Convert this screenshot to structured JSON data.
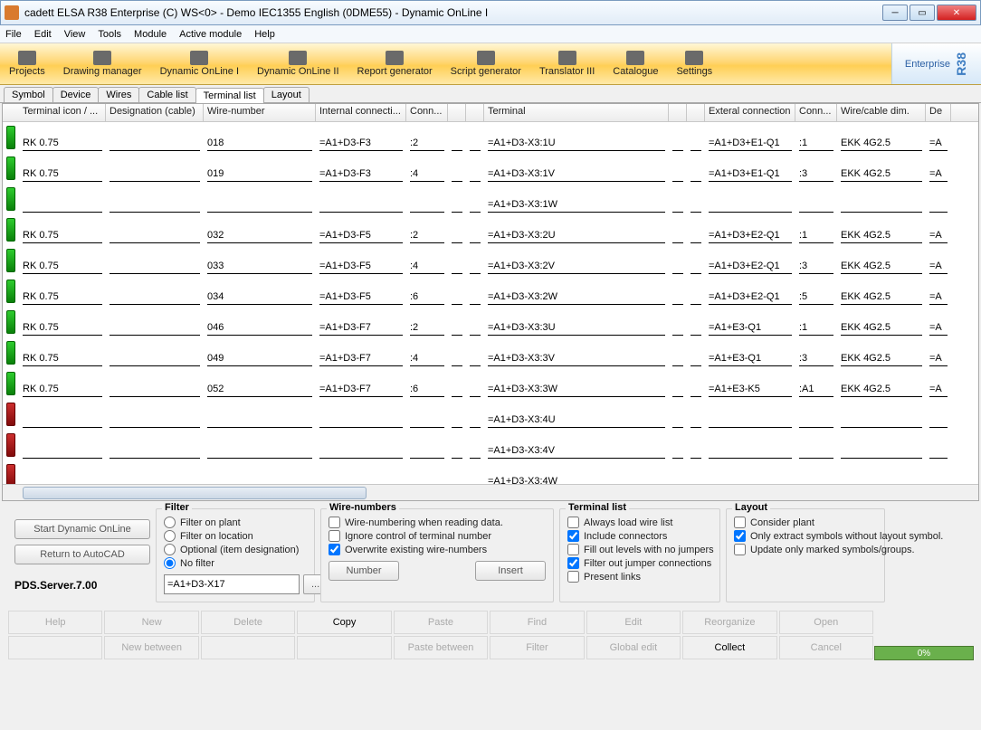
{
  "window": {
    "title": "cadett ELSA R38 Enterprise (C) WS<0>  - Demo IEC1355 English (0DME55) - Dynamic OnLine I"
  },
  "menu": [
    "File",
    "Edit",
    "View",
    "Tools",
    "Module",
    "Active module",
    "Help"
  ],
  "ribbon": {
    "items": [
      "Projects",
      "Drawing manager",
      "Dynamic OnLine I",
      "Dynamic OnLine II",
      "Report generator",
      "Script generator",
      "Translator III",
      "Catalogue",
      "Settings"
    ],
    "brand": "Enterprise",
    "brand_suffix": "R38"
  },
  "tabs": [
    "Symbol",
    "Device",
    "Wires",
    "Cable list",
    "Terminal list",
    "Layout"
  ],
  "active_tab_index": 4,
  "columns": [
    "Terminal icon / ...",
    "Designation (cable)",
    "Wire-number",
    "Internal connecti...",
    "Conn...",
    "",
    "",
    "Terminal",
    "",
    "",
    "Exteral connection",
    "Conn...",
    "Wire/cable dim.",
    "De..."
  ],
  "rows": [
    {
      "color": "green",
      "ric": "RK 0.75",
      "desig": "",
      "wire": "018",
      "intc": "=A1+D3-F3",
      "conn1": ":2",
      "term": "=A1+D3-X3:1U",
      "ext": "=A1+D3+E1-Q1",
      "conn2": ":1",
      "wdim": "EKK 4G2.5",
      "last": "=A"
    },
    {
      "color": "green",
      "ric": "RK 0.75",
      "desig": "",
      "wire": "019",
      "intc": "=A1+D3-F3",
      "conn1": ":4",
      "term": "=A1+D3-X3:1V",
      "ext": "=A1+D3+E1-Q1",
      "conn2": ":3",
      "wdim": "EKK 4G2.5",
      "last": "=A"
    },
    {
      "color": "green",
      "ric": "",
      "desig": "",
      "wire": "",
      "intc": "",
      "conn1": "",
      "term": "=A1+D3-X3:1W",
      "ext": "",
      "conn2": "",
      "wdim": "",
      "last": ""
    },
    {
      "color": "green",
      "ric": "RK 0.75",
      "desig": "",
      "wire": "032",
      "intc": "=A1+D3-F5",
      "conn1": ":2",
      "term": "=A1+D3-X3:2U",
      "ext": "=A1+D3+E2-Q1",
      "conn2": ":1",
      "wdim": "EKK 4G2.5",
      "last": "=A"
    },
    {
      "color": "green",
      "ric": "RK 0.75",
      "desig": "",
      "wire": "033",
      "intc": "=A1+D3-F5",
      "conn1": ":4",
      "term": "=A1+D3-X3:2V",
      "ext": "=A1+D3+E2-Q1",
      "conn2": ":3",
      "wdim": "EKK 4G2.5",
      "last": "=A"
    },
    {
      "color": "green",
      "ric": "RK 0.75",
      "desig": "",
      "wire": "034",
      "intc": "=A1+D3-F5",
      "conn1": ":6",
      "term": "=A1+D3-X3:2W",
      "ext": "=A1+D3+E2-Q1",
      "conn2": ":5",
      "wdim": "EKK 4G2.5",
      "last": "=A"
    },
    {
      "color": "green",
      "ric": "RK 0.75",
      "desig": "",
      "wire": "046",
      "intc": "=A1+D3-F7",
      "conn1": ":2",
      "term": "=A1+D3-X3:3U",
      "ext": "=A1+E3-Q1",
      "conn2": ":1",
      "wdim": "EKK 4G2.5",
      "last": "=A"
    },
    {
      "color": "green",
      "ric": "RK 0.75",
      "desig": "",
      "wire": "049",
      "intc": "=A1+D3-F7",
      "conn1": ":4",
      "term": "=A1+D3-X3:3V",
      "ext": "=A1+E3-Q1",
      "conn2": ":3",
      "wdim": "EKK 4G2.5",
      "last": "=A"
    },
    {
      "color": "green",
      "ric": "RK 0.75",
      "desig": "",
      "wire": "052",
      "intc": "=A1+D3-F7",
      "conn1": ":6",
      "term": "=A1+D3-X3:3W",
      "ext": "=A1+E3-K5",
      "conn2": ":A1",
      "wdim": "EKK 4G2.5",
      "last": "=A"
    },
    {
      "color": "red",
      "ric": "",
      "desig": "",
      "wire": "",
      "intc": "",
      "conn1": "",
      "term": "=A1+D3-X3:4U",
      "ext": "",
      "conn2": "",
      "wdim": "",
      "last": ""
    },
    {
      "color": "red",
      "ric": "",
      "desig": "",
      "wire": "",
      "intc": "",
      "conn1": "",
      "term": "=A1+D3-X3:4V",
      "ext": "",
      "conn2": "",
      "wdim": "",
      "last": ""
    },
    {
      "color": "red",
      "ric": "",
      "desig": "",
      "wire": "",
      "intc": "",
      "conn1": "",
      "term": "=A1+D3-X3:4W",
      "ext": "",
      "conn2": "",
      "wdim": "",
      "last": ""
    }
  ],
  "left_buttons": {
    "start": "Start Dynamic OnLine",
    "return": "Return to AutoCAD"
  },
  "pds": "PDS.Server.7.00",
  "filter": {
    "title": "Filter",
    "opts": [
      "Filter on plant",
      "Filter on location",
      "Optional (item designation)",
      "No filter"
    ],
    "selected": 3,
    "value": "=A1+D3-X17",
    "dots": "..."
  },
  "wiren": {
    "title": "Wire-numbers",
    "checks": [
      {
        "label": "Wire-numbering when reading data.",
        "checked": false
      },
      {
        "label": "Ignore control of terminal number",
        "checked": false
      },
      {
        "label": "Overwrite existing wire-numbers",
        "checked": true
      }
    ],
    "btn_number": "Number",
    "btn_insert": "Insert"
  },
  "tlist": {
    "title": "Terminal list",
    "checks": [
      {
        "label": "Always load wire list",
        "checked": false
      },
      {
        "label": "Include connectors",
        "checked": true
      },
      {
        "label": "Fill out levels with no jumpers",
        "checked": false
      },
      {
        "label": "Filter out jumper connections",
        "checked": true
      },
      {
        "label": "Present links",
        "checked": false
      }
    ]
  },
  "layout": {
    "title": "Layout",
    "checks": [
      {
        "label": "Consider plant",
        "checked": false
      },
      {
        "label": "Only extract symbols without layout symbol.",
        "checked": true
      },
      {
        "label": "Update only marked symbols/groups.",
        "checked": false
      }
    ]
  },
  "bottom_buttons_row1": [
    "Help",
    "New",
    "Delete",
    "Copy",
    "Paste",
    "Find",
    "Edit",
    "Reorganize",
    "Open"
  ],
  "bottom_buttons_row2": [
    "",
    "New between",
    "",
    "",
    "Paste between",
    "Filter",
    "Global edit",
    "Collect",
    "Cancel"
  ],
  "bottom_enabled_row1": [
    false,
    false,
    false,
    true,
    false,
    false,
    false,
    false,
    false
  ],
  "bottom_enabled_row2": [
    false,
    false,
    false,
    false,
    false,
    false,
    false,
    true,
    false
  ],
  "progress": "0%"
}
